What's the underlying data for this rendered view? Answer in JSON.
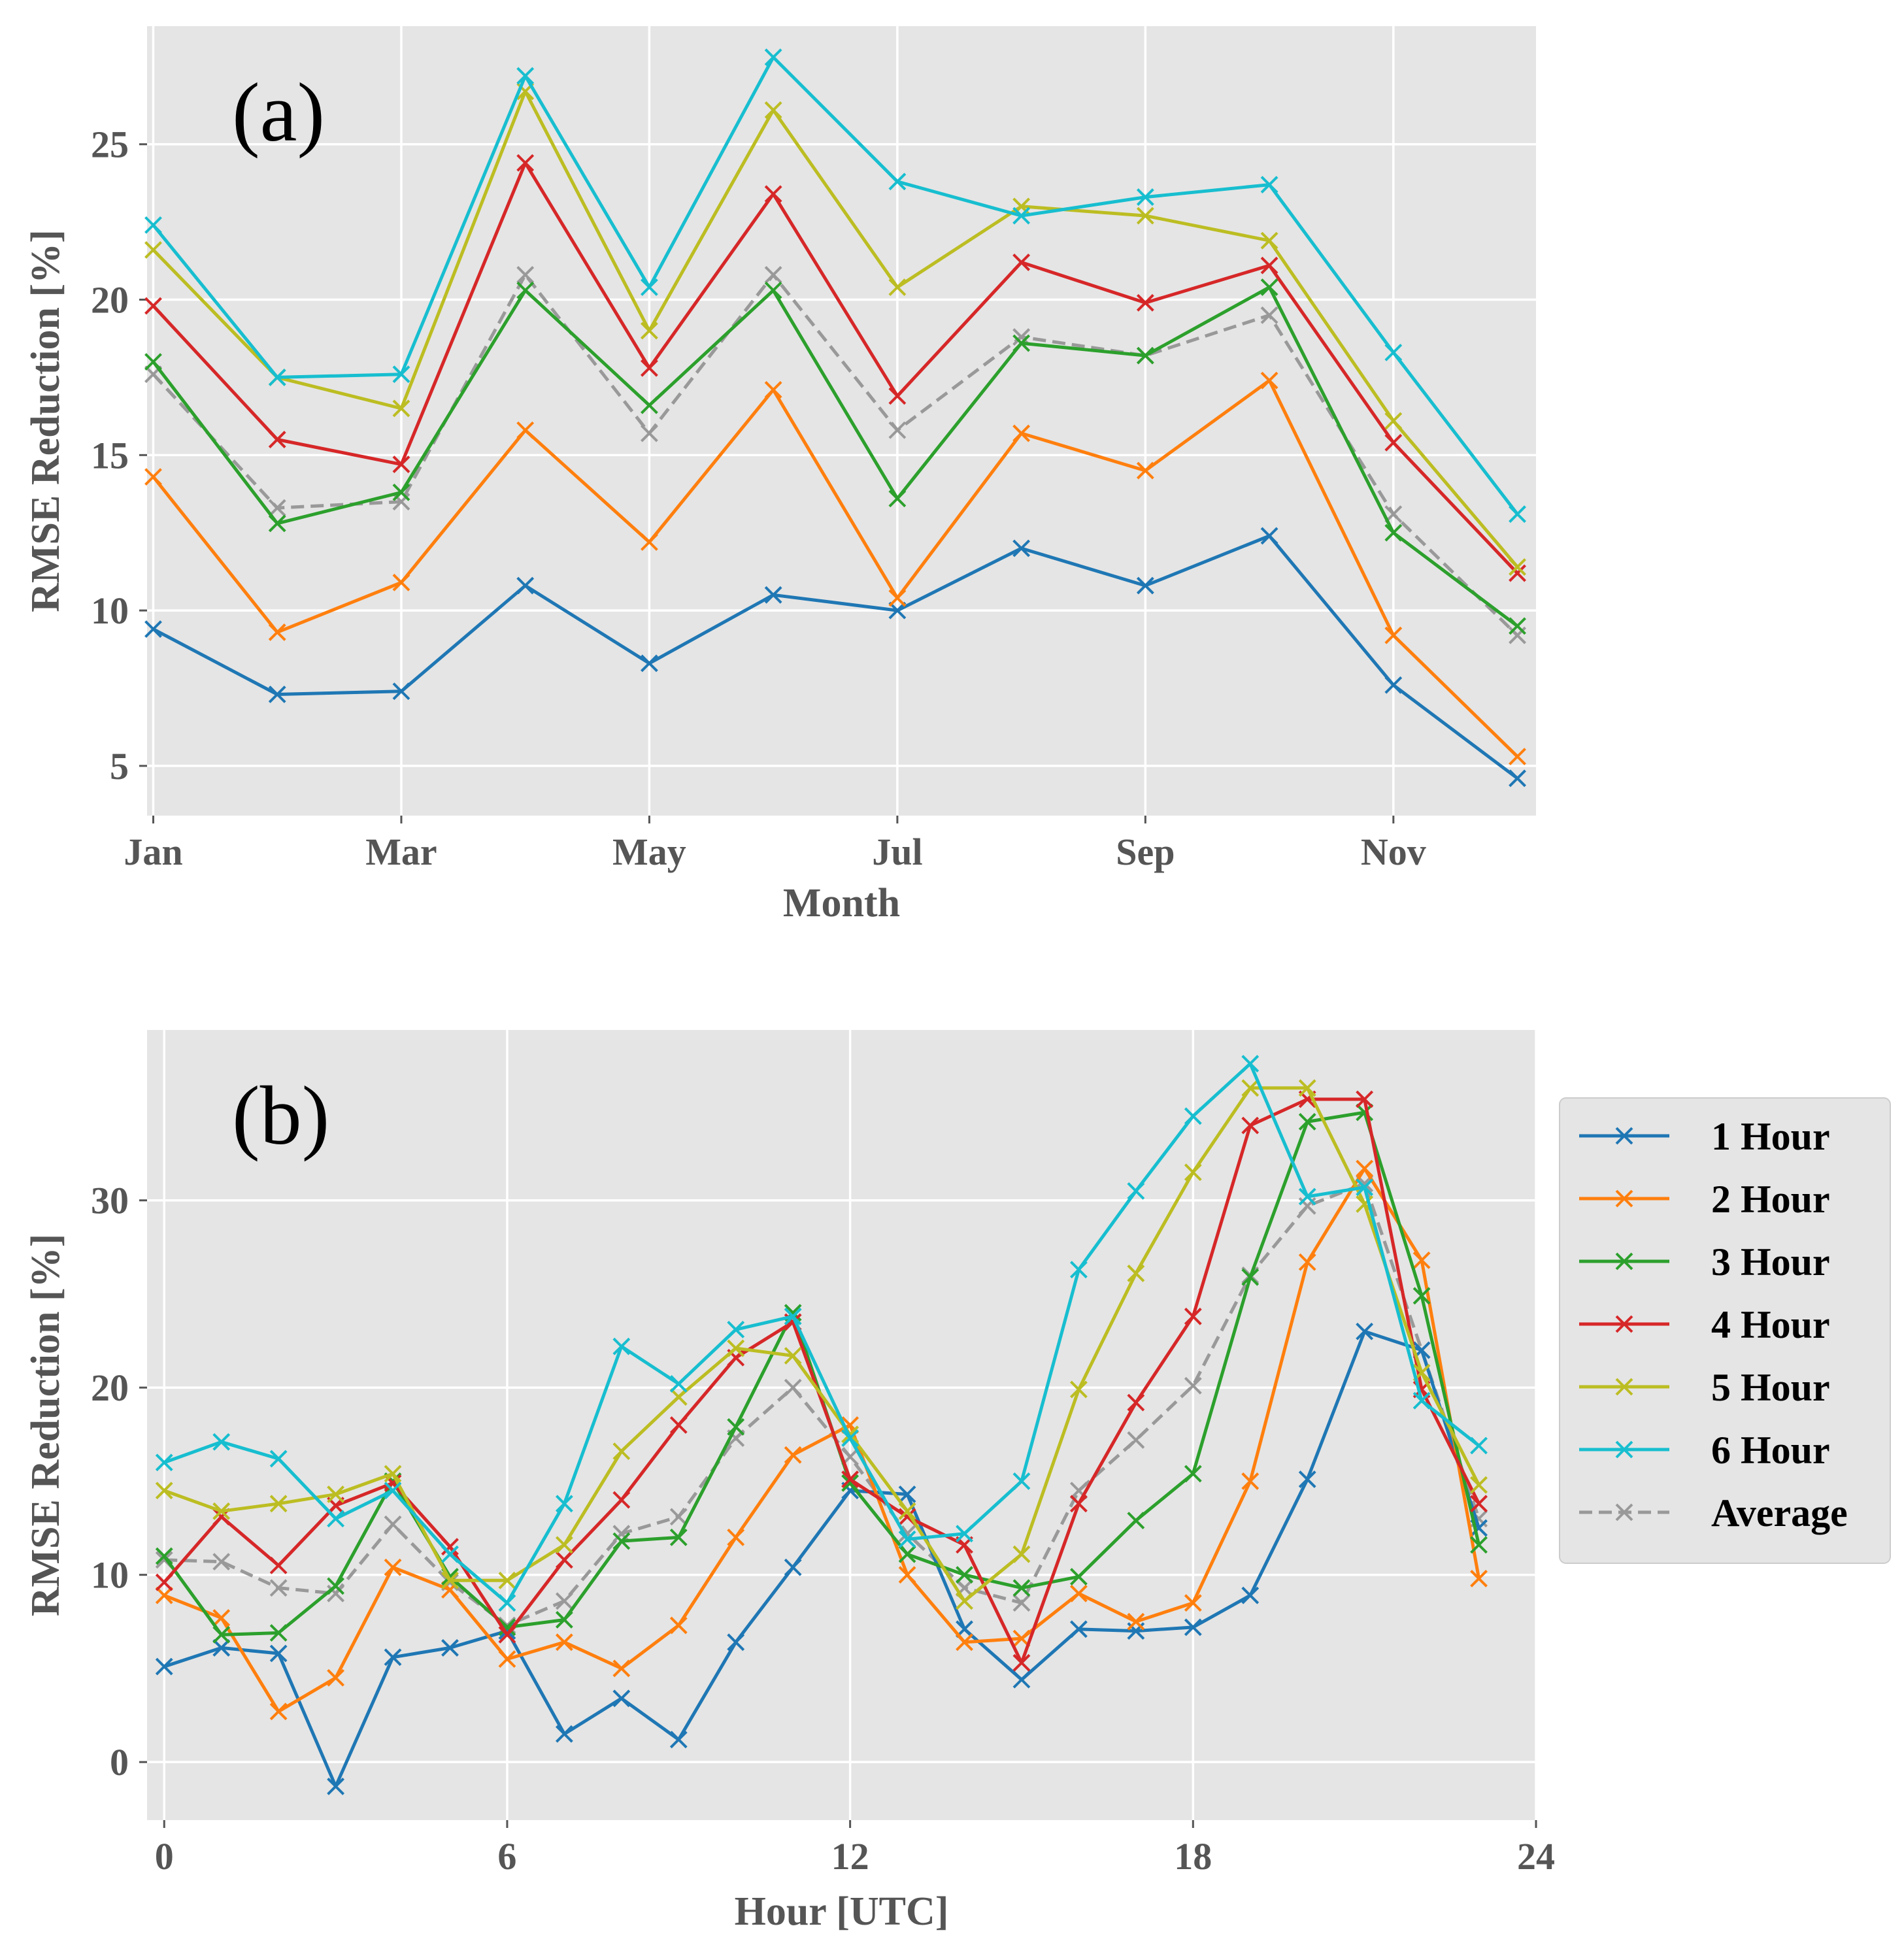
{
  "chart_data": [
    {
      "type": "line",
      "panel_label": "(a)",
      "title": "",
      "xlabel": "Month",
      "ylabel": "RMSE Reduction [%]",
      "x": [
        1,
        2,
        3,
        4,
        5,
        6,
        7,
        8,
        9,
        10,
        11,
        12
      ],
      "xlim": [
        0.95,
        12.15
      ],
      "ylim": [
        3.4,
        28.8
      ],
      "xticks": [
        1,
        3,
        5,
        7,
        9,
        11
      ],
      "xtick_labels": [
        "Jan",
        "Mar",
        "May",
        "Jul",
        "Sep",
        "Nov"
      ],
      "yticks": [
        5,
        10,
        15,
        20,
        25
      ],
      "ytick_labels": [
        "5",
        "10",
        "15",
        "20",
        "25"
      ],
      "grid": true,
      "series": [
        {
          "name": "1 Hour",
          "color": "#1f77b4",
          "dashed": false,
          "values": [
            9.4,
            7.3,
            7.4,
            10.8,
            8.3,
            10.5,
            10.0,
            12.0,
            10.8,
            12.4,
            7.6,
            4.6
          ]
        },
        {
          "name": "2 Hour",
          "color": "#ff7f0e",
          "dashed": false,
          "values": [
            14.3,
            9.3,
            10.9,
            15.8,
            12.2,
            17.1,
            10.4,
            15.7,
            14.5,
            17.4,
            9.2,
            5.3
          ]
        },
        {
          "name": "3 Hour",
          "color": "#2ca02c",
          "dashed": false,
          "values": [
            18.0,
            12.8,
            13.8,
            20.3,
            16.6,
            20.3,
            13.6,
            18.6,
            18.2,
            20.4,
            12.5,
            9.5
          ]
        },
        {
          "name": "4 Hour",
          "color": "#d62728",
          "dashed": false,
          "values": [
            19.8,
            15.5,
            14.7,
            24.4,
            17.8,
            23.4,
            16.9,
            21.2,
            19.9,
            21.1,
            15.4,
            11.2
          ]
        },
        {
          "name": "5 Hour",
          "color": "#bcbd22",
          "dashed": false,
          "values": [
            21.6,
            17.5,
            16.5,
            26.7,
            19.0,
            26.1,
            20.4,
            23.0,
            22.7,
            21.9,
            16.1,
            11.4
          ]
        },
        {
          "name": "6 Hour",
          "color": "#17becf",
          "dashed": false,
          "values": [
            22.4,
            17.5,
            17.6,
            27.2,
            20.4,
            27.8,
            23.8,
            22.7,
            23.3,
            23.7,
            18.3,
            13.1
          ]
        },
        {
          "name": "Average",
          "color": "#999999",
          "dashed": true,
          "values": [
            17.6,
            13.3,
            13.5,
            20.8,
            15.7,
            20.8,
            15.8,
            18.8,
            18.2,
            19.5,
            13.1,
            9.2
          ]
        }
      ]
    },
    {
      "type": "line",
      "panel_label": "(b)",
      "title": "",
      "xlabel": "Hour [UTC]",
      "ylabel": "RMSE Reduction [%]",
      "x": [
        0,
        1,
        2,
        3,
        4,
        5,
        6,
        7,
        8,
        9,
        10,
        11,
        12,
        13,
        14,
        15,
        16,
        17,
        18,
        19,
        20,
        21,
        22,
        23
      ],
      "xlim": [
        -0.3,
        24
      ],
      "ylim": [
        -3.1,
        39.1
      ],
      "xticks": [
        0,
        6,
        12,
        18,
        24
      ],
      "xtick_labels": [
        "0",
        "6",
        "12",
        "18",
        "24"
      ],
      "yticks": [
        0,
        10,
        20,
        30
      ],
      "ytick_labels": [
        "0",
        "10",
        "20",
        "30"
      ],
      "grid": true,
      "legend_position": "right",
      "series": [
        {
          "name": "1 Hour",
          "color": "#1f77b4",
          "dashed": false,
          "values": [
            5.1,
            6.1,
            5.8,
            -1.3,
            5.6,
            6.1,
            7.0,
            1.5,
            3.4,
            1.2,
            6.4,
            10.4,
            14.5,
            14.3,
            7.1,
            4.4,
            7.1,
            7.0,
            7.2,
            8.9,
            15.1,
            23.0,
            22.0,
            12.5
          ]
        },
        {
          "name": "2 Hour",
          "color": "#ff7f0e",
          "dashed": false,
          "values": [
            8.9,
            7.7,
            2.7,
            4.5,
            10.4,
            9.2,
            5.5,
            6.4,
            5.0,
            7.3,
            12.0,
            16.4,
            18.0,
            10.0,
            6.4,
            6.6,
            9.0,
            7.5,
            8.5,
            15.0,
            26.7,
            31.7,
            26.8,
            9.8
          ]
        },
        {
          "name": "3 Hour",
          "color": "#2ca02c",
          "dashed": false,
          "values": [
            11.0,
            6.8,
            6.9,
            9.4,
            15.0,
            9.9,
            7.2,
            7.6,
            11.8,
            12.0,
            17.9,
            24.0,
            14.9,
            11.1,
            10.0,
            9.3,
            9.9,
            12.9,
            15.4,
            25.9,
            34.2,
            34.7,
            24.9,
            11.6
          ]
        },
        {
          "name": "4 Hour",
          "color": "#d62728",
          "dashed": false,
          "values": [
            9.6,
            13.1,
            10.5,
            13.7,
            14.9,
            11.5,
            6.8,
            10.8,
            14.0,
            18.0,
            21.6,
            23.5,
            15.1,
            13.1,
            11.6,
            5.3,
            13.8,
            19.2,
            23.8,
            34.0,
            35.4,
            35.4,
            19.9,
            13.8
          ]
        },
        {
          "name": "5 Hour",
          "color": "#bcbd22",
          "dashed": false,
          "values": [
            14.5,
            13.4,
            13.8,
            14.3,
            15.4,
            9.7,
            9.7,
            11.6,
            16.6,
            19.5,
            22.1,
            21.7,
            17.5,
            13.4,
            8.6,
            11.1,
            19.9,
            26.1,
            31.5,
            36.0,
            36.0,
            29.8,
            20.8,
            14.8
          ]
        },
        {
          "name": "6 Hour",
          "color": "#17becf",
          "dashed": false,
          "values": [
            16.0,
            17.1,
            16.2,
            13.0,
            14.5,
            11.1,
            8.5,
            13.8,
            22.2,
            20.2,
            23.1,
            23.8,
            17.3,
            11.9,
            12.2,
            15.0,
            26.3,
            30.5,
            34.5,
            37.3,
            30.2,
            30.7,
            19.3,
            16.9
          ]
        },
        {
          "name": "Average",
          "color": "#999999",
          "dashed": true,
          "values": [
            10.8,
            10.7,
            9.3,
            9.0,
            12.7,
            9.6,
            7.3,
            8.6,
            12.2,
            13.1,
            17.3,
            20.0,
            16.3,
            12.2,
            9.3,
            8.5,
            14.5,
            17.2,
            20.1,
            26.0,
            29.7,
            30.9,
            22.0,
            13.0
          ]
        }
      ]
    }
  ]
}
